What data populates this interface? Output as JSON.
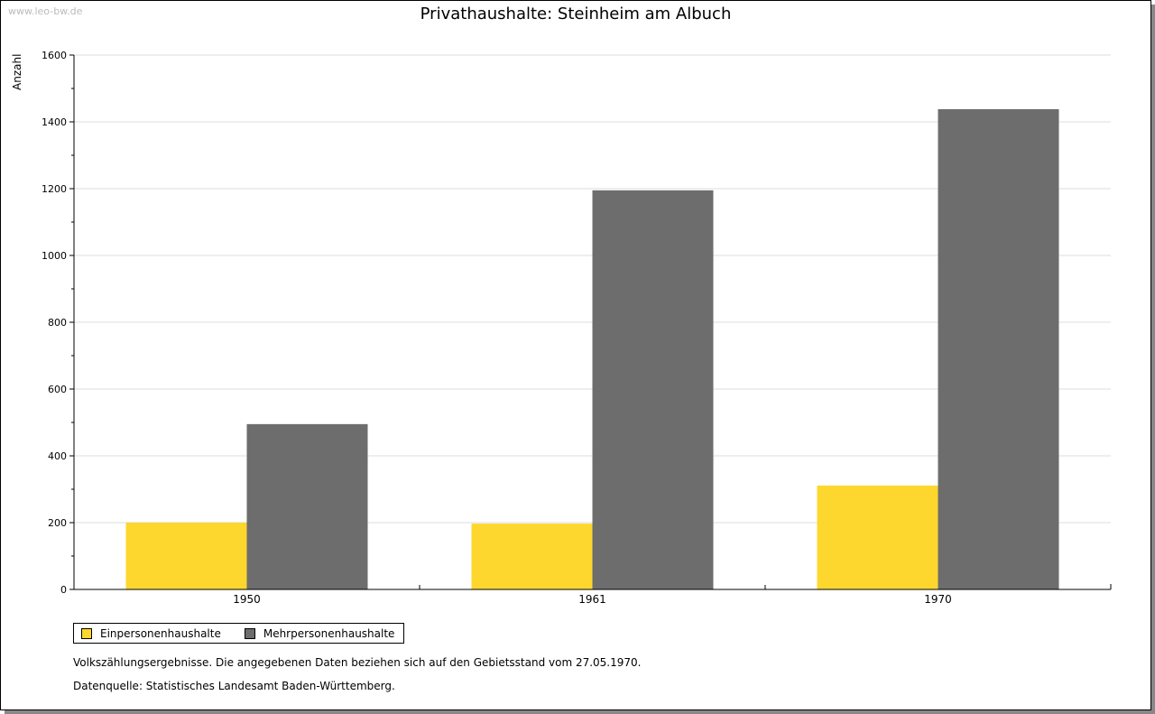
{
  "watermark": "www.leo-bw.de",
  "notes": [
    "Volkszählungsergebnisse. Die angegebenen Daten beziehen sich auf den Gebietsstand vom 27.05.1970.",
    "Datenquelle: Statistisches Landesamt Baden-Württemberg."
  ],
  "chart_data": {
    "type": "bar",
    "title": "Privathaushalte: Steinheim am Albuch",
    "xlabel": "",
    "ylabel": "Anzahl",
    "ylim": [
      0,
      1600
    ],
    "yticks": [
      0,
      200,
      400,
      600,
      800,
      1000,
      1200,
      1400,
      1600
    ],
    "categories": [
      "1950",
      "1961",
      "1970"
    ],
    "series": [
      {
        "name": "Einpersonenhaushalte",
        "color": "#fdd72d",
        "values": [
          200,
          197,
          311
        ]
      },
      {
        "name": "Mehrpersonenhaushalte",
        "color": "#6d6d6d",
        "values": [
          495,
          1195,
          1438
        ]
      }
    ],
    "grid": true,
    "legend": "bottom-left"
  }
}
